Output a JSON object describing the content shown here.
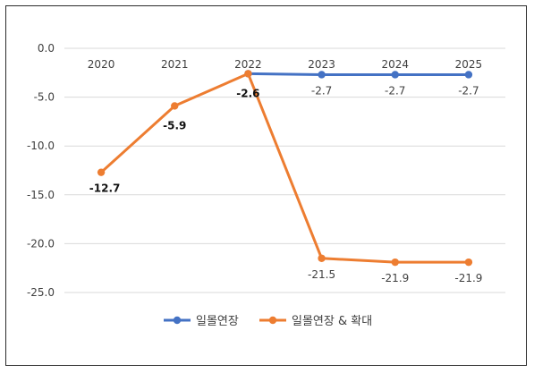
{
  "chart_data": {
    "type": "line",
    "title": "",
    "xlabel": "",
    "ylabel": "",
    "categories": [
      "2020",
      "2021",
      "2022",
      "2023",
      "2024",
      "2025"
    ],
    "ylim": [
      -25.0,
      0.0
    ],
    "yticks": [
      "0.0",
      "-5.0",
      "-10.0",
      "-15.0",
      "-20.0",
      "-25.0"
    ],
    "grid": true,
    "legend_position": "bottom",
    "series": [
      {
        "name": "일몰연장",
        "color": "#4472C4",
        "values": [
          null,
          null,
          -2.6,
          -2.7,
          -2.7,
          -2.7
        ],
        "labels": [
          "",
          "",
          "",
          "-2.7",
          "-2.7",
          "-2.7"
        ]
      },
      {
        "name": "일몰연장 & 확대",
        "color": "#ED7D31",
        "values": [
          -12.7,
          -5.9,
          -2.6,
          -21.5,
          -21.9,
          -21.9
        ],
        "labels": [
          "-12.7",
          "-5.9",
          "-2.6",
          "-21.5",
          "-21.9",
          "-21.9"
        ]
      }
    ]
  }
}
